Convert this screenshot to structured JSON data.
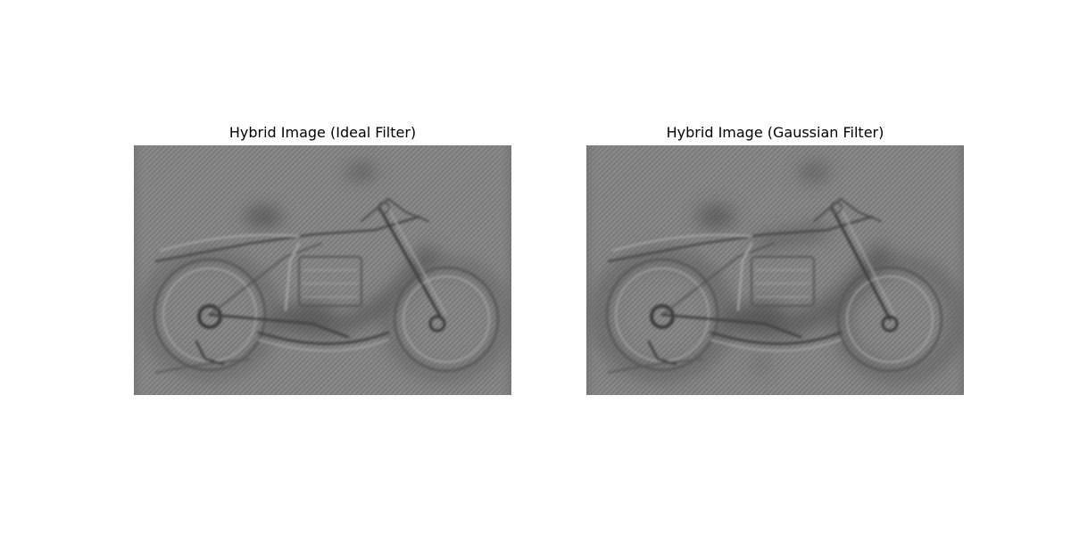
{
  "figure": {
    "background": "#ffffff",
    "panels": [
      {
        "title": "Hybrid Image (Ideal Filter)",
        "subject": "motorcycle",
        "filter": "ideal",
        "base_gray": "#8a8a8a"
      },
      {
        "title": "Hybrid Image (Gaussian Filter)",
        "subject": "motorcycle",
        "filter": "gaussian",
        "base_gray": "#8a8a8a"
      }
    ]
  }
}
